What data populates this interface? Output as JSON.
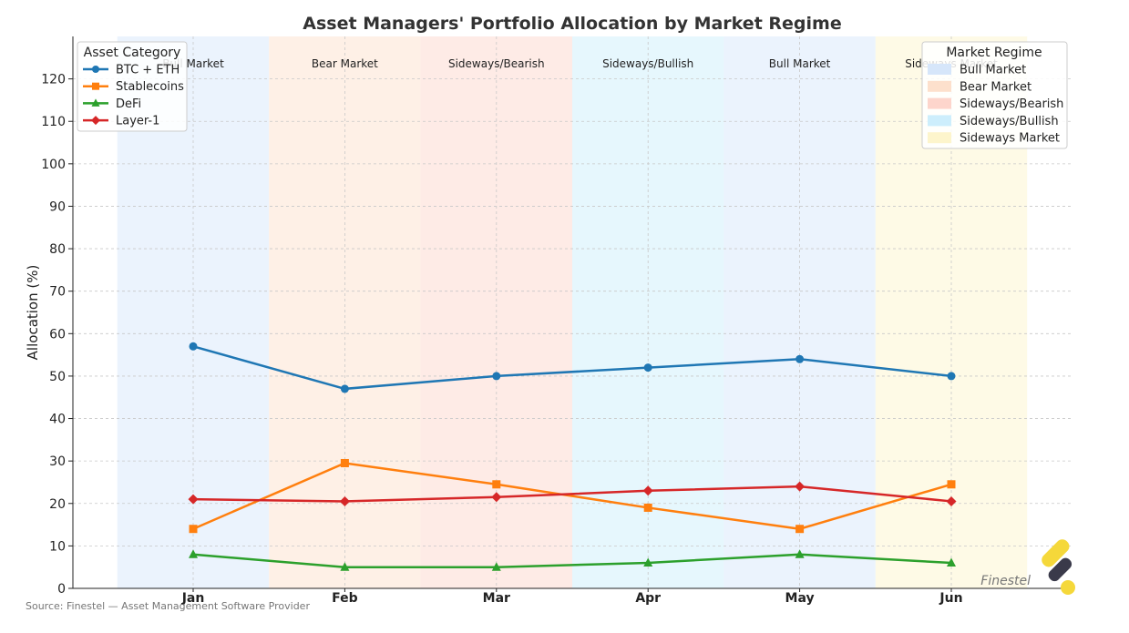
{
  "chart_data": {
    "type": "line",
    "title": "Asset Managers' Portfolio Allocation by Market Regime",
    "xlabel": "",
    "ylabel": "Allocation (%)",
    "ylim": [
      0,
      130
    ],
    "yticks": [
      0,
      10,
      20,
      30,
      40,
      50,
      60,
      70,
      80,
      90,
      100,
      110,
      120
    ],
    "categories": [
      "Jan",
      "Feb",
      "Mar",
      "Apr",
      "May",
      "Jun"
    ],
    "grid": true,
    "series": [
      {
        "name": "BTC + ETH",
        "color": "#1f77b4",
        "marker": "circle",
        "values": [
          57,
          47,
          50,
          52,
          54,
          50
        ]
      },
      {
        "name": "Stablecoins",
        "color": "#ff7f0e",
        "marker": "square",
        "values": [
          14,
          29.5,
          24.5,
          19,
          14,
          24.5
        ]
      },
      {
        "name": "DeFi",
        "color": "#2ca02c",
        "marker": "triangle",
        "values": [
          8,
          5,
          5,
          6,
          8,
          6
        ]
      },
      {
        "name": "Layer-1",
        "color": "#d62728",
        "marker": "diamond",
        "values": [
          21,
          20.5,
          21.5,
          23,
          24,
          20.5
        ]
      }
    ],
    "legend": {
      "title": "Asset Category",
      "placement": "top-left"
    },
    "regimes": [
      {
        "label": "Bull Market",
        "color": "#e3eefc",
        "month": "Jan"
      },
      {
        "label": "Bear Market",
        "color": "#fde9dc",
        "month": "Feb"
      },
      {
        "label": "Sideways/Bearish",
        "color": "#fde3dc",
        "month": "Mar"
      },
      {
        "label": "Sideways/Bullish",
        "color": "#dcf4fc",
        "month": "Apr"
      },
      {
        "label": "Bull Market",
        "color": "#e3eefc",
        "month": "May"
      },
      {
        "label": "Sideways Market",
        "color": "#fdf8dc",
        "month": "Jun"
      }
    ],
    "regime_legend": {
      "title": "Market Regime",
      "placement": "top-right",
      "items": [
        {
          "label": "Bull Market",
          "color": "#d6e6fa"
        },
        {
          "label": "Bear Market",
          "color": "#fde0cc"
        },
        {
          "label": "Sideways/Bearish",
          "color": "#fdd5cc"
        },
        {
          "label": "Sideways/Bullish",
          "color": "#cdeefc"
        },
        {
          "label": "Sideways Market",
          "color": "#fdf5cc"
        }
      ]
    }
  },
  "source_note": "Source: Finestel — Asset Management Software Provider",
  "watermark": "Finestel"
}
